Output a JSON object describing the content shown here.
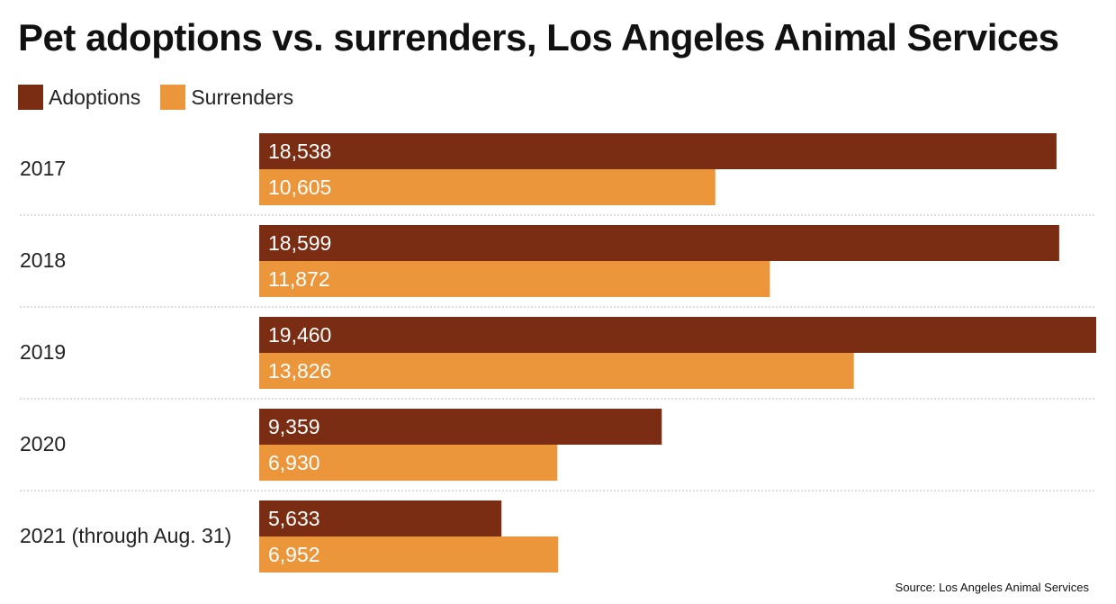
{
  "chart_data": {
    "type": "bar",
    "orientation": "horizontal",
    "title": "Pet adoptions vs. surrenders, Los Angeles Animal Services",
    "categories": [
      "2017",
      "2018",
      "2019",
      "2020",
      "2021 (through Aug. 31)"
    ],
    "series": [
      {
        "name": "Adoptions",
        "color": "#7a2d12",
        "values": [
          18538,
          18599,
          19460,
          9359,
          5633
        ],
        "labels": [
          "18,538",
          "18,599",
          "19,460",
          "9,359",
          "5,633"
        ]
      },
      {
        "name": "Surrenders",
        "color": "#eb963a",
        "values": [
          10605,
          11872,
          13826,
          6930,
          6952
        ],
        "labels": [
          "10,605",
          "11,872",
          "13,826",
          "6,930",
          "6,952"
        ]
      }
    ],
    "xlim": [
      0,
      19460
    ],
    "grid": false,
    "row_separators": "dotted",
    "legend_position": "top-left",
    "source": "Source: Los Angeles Animal Services"
  }
}
